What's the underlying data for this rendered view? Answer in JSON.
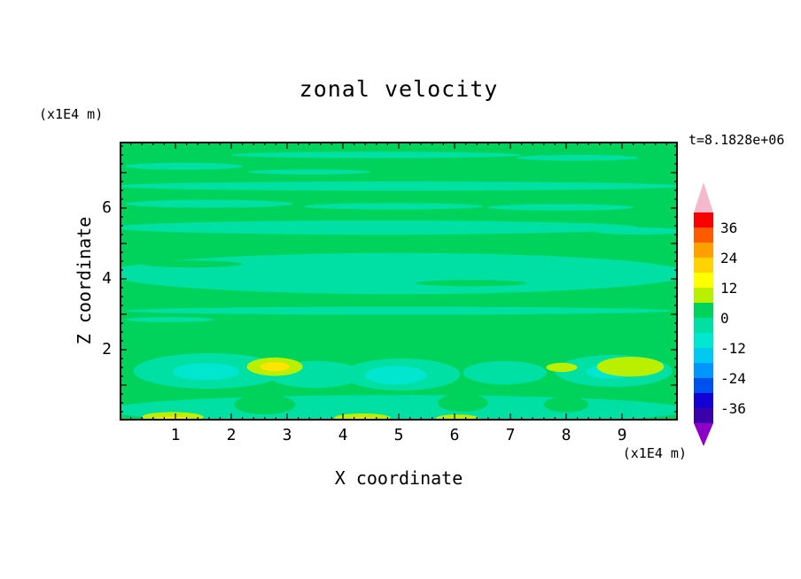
{
  "chart_data": {
    "type": "heatmap",
    "title": "zonal velocity",
    "timestamp": "t=8.1828e+06",
    "xlabel": "X coordinate",
    "ylabel": "Z coordinate",
    "x_units": "(x1E4 m)",
    "y_units": "(x1E4 m)",
    "x_range": [
      0,
      10
    ],
    "y_range": [
      0,
      7.875
    ],
    "x_ticks": [
      1,
      2,
      3,
      4,
      5,
      6,
      7,
      8,
      9
    ],
    "y_ticks": [
      2,
      4,
      6
    ],
    "x_minor_step": 0.2,
    "y_minor_step": 0.25,
    "grid": false,
    "contour_interval": 6,
    "background_color": "#00d35c",
    "palette": {
      "green_0_to_6": "#00d35c",
      "turquoise_-6_to_0": "#00e0a4",
      "cyan_-12_to_-6": "#00e6cf",
      "yellowgreen_6_to_12": "#baf000",
      "yellow_12_to_18": "#ffe400"
    },
    "colorbar": {
      "labels": [
        "36",
        "24",
        "12",
        "0",
        "-12",
        "-24",
        "-36"
      ],
      "levels": [
        42,
        36,
        30,
        24,
        18,
        12,
        6,
        0,
        -6,
        -12,
        -18,
        -24,
        -30,
        -36,
        -42
      ],
      "segment_colors": [
        "#fa0000",
        "#ff5a00",
        "#ffa000",
        "#ffd200",
        "#ffff00",
        "#baf000",
        "#00d35c",
        "#00e0a4",
        "#00e6cf",
        "#00c8f0",
        "#0096ff",
        "#0050f0",
        "#1400d2",
        "#3c00aa"
      ],
      "top_arrow_color": "#f6b8cc",
      "bottom_arrow_color": "#8c00c8"
    },
    "features": [
      {
        "x": 4.6,
        "z": 7.5,
        "rx": 2.6,
        "ry": 0.09,
        "color": "#00e0a4"
      },
      {
        "x": 8.2,
        "z": 7.42,
        "rx": 1.1,
        "ry": 0.08,
        "color": "#00e0a4"
      },
      {
        "x": 1.15,
        "z": 7.18,
        "rx": 1.05,
        "ry": 0.1,
        "color": "#00e0a4"
      },
      {
        "x": 3.4,
        "z": 7.02,
        "rx": 1.1,
        "ry": 0.07,
        "color": "#00e0a4"
      },
      {
        "x": 5.0,
        "z": 6.62,
        "rx": 5.1,
        "ry": 0.13,
        "color": "#00e0a4"
      },
      {
        "x": 1.6,
        "z": 6.12,
        "rx": 1.5,
        "ry": 0.11,
        "color": "#00e0a4"
      },
      {
        "x": 4.9,
        "z": 6.05,
        "rx": 1.6,
        "ry": 0.09,
        "color": "#00e0a4"
      },
      {
        "x": 7.9,
        "z": 6.02,
        "rx": 1.3,
        "ry": 0.09,
        "color": "#00e0a4"
      },
      {
        "x": 4.6,
        "z": 5.45,
        "rx": 4.7,
        "ry": 0.2,
        "color": "#00e0a4"
      },
      {
        "x": 9.3,
        "z": 5.35,
        "rx": 0.8,
        "ry": 0.1,
        "color": "#00e0a4"
      },
      {
        "x": 5.0,
        "z": 4.15,
        "rx": 5.2,
        "ry": 0.58,
        "color": "#00e0a4"
      },
      {
        "x": 5.0,
        "z": 3.1,
        "rx": 4.9,
        "ry": 0.11,
        "color": "#00e0a4"
      },
      {
        "x": 0.9,
        "z": 2.85,
        "rx": 0.8,
        "ry": 0.07,
        "color": "#00e0a4"
      },
      {
        "x": 1.6,
        "z": 1.4,
        "rx": 1.35,
        "ry": 0.5,
        "color": "#00e0a4"
      },
      {
        "x": 3.5,
        "z": 1.3,
        "rx": 0.85,
        "ry": 0.38,
        "color": "#00e0a4"
      },
      {
        "x": 5.05,
        "z": 1.3,
        "rx": 1.05,
        "ry": 0.45,
        "color": "#00e0a4"
      },
      {
        "x": 6.9,
        "z": 1.35,
        "rx": 0.75,
        "ry": 0.33,
        "color": "#00e0a4"
      },
      {
        "x": 8.85,
        "z": 1.4,
        "rx": 1.05,
        "ry": 0.45,
        "color": "#00e0a4"
      },
      {
        "x": 5.0,
        "z": 0.3,
        "rx": 5.2,
        "ry": 0.42,
        "color": "#00e0a4"
      },
      {
        "x": 1.3,
        "z": 4.42,
        "rx": 0.9,
        "ry": 0.1,
        "color": "#00d35c"
      },
      {
        "x": 6.3,
        "z": 3.88,
        "rx": 1.0,
        "ry": 0.09,
        "color": "#00d35c"
      },
      {
        "x": 2.6,
        "z": 0.45,
        "rx": 0.55,
        "ry": 0.28,
        "color": "#00d35c"
      },
      {
        "x": 6.15,
        "z": 0.5,
        "rx": 0.45,
        "ry": 0.25,
        "color": "#00d35c"
      },
      {
        "x": 8.0,
        "z": 0.45,
        "rx": 0.4,
        "ry": 0.22,
        "color": "#00d35c"
      },
      {
        "x": 1.55,
        "z": 1.38,
        "rx": 0.6,
        "ry": 0.24,
        "color": "#00e6cf"
      },
      {
        "x": 4.95,
        "z": 1.28,
        "rx": 0.55,
        "ry": 0.26,
        "color": "#00e6cf"
      },
      {
        "x": 8.8,
        "z": 1.38,
        "rx": 0.45,
        "ry": 0.2,
        "color": "#00e6cf"
      },
      {
        "x": 2.78,
        "z": 1.52,
        "rx": 0.5,
        "ry": 0.26,
        "color": "#baf000"
      },
      {
        "x": 9.15,
        "z": 1.52,
        "rx": 0.6,
        "ry": 0.28,
        "color": "#baf000"
      },
      {
        "x": 7.92,
        "z": 1.5,
        "rx": 0.28,
        "ry": 0.13,
        "color": "#baf000"
      },
      {
        "x": 0.95,
        "z": 0.1,
        "rx": 0.55,
        "ry": 0.14,
        "color": "#baf000"
      },
      {
        "x": 4.35,
        "z": 0.08,
        "rx": 0.5,
        "ry": 0.12,
        "color": "#baf000"
      },
      {
        "x": 6.05,
        "z": 0.07,
        "rx": 0.38,
        "ry": 0.1,
        "color": "#baf000"
      },
      {
        "x": 2.78,
        "z": 1.52,
        "rx": 0.26,
        "ry": 0.13,
        "color": "#ffe400"
      },
      {
        "x": 0.95,
        "z": 0.04,
        "rx": 0.32,
        "ry": 0.07,
        "color": "#ffe400"
      },
      {
        "x": 4.35,
        "z": 0.03,
        "rx": 0.28,
        "ry": 0.06,
        "color": "#ffe400"
      }
    ]
  }
}
